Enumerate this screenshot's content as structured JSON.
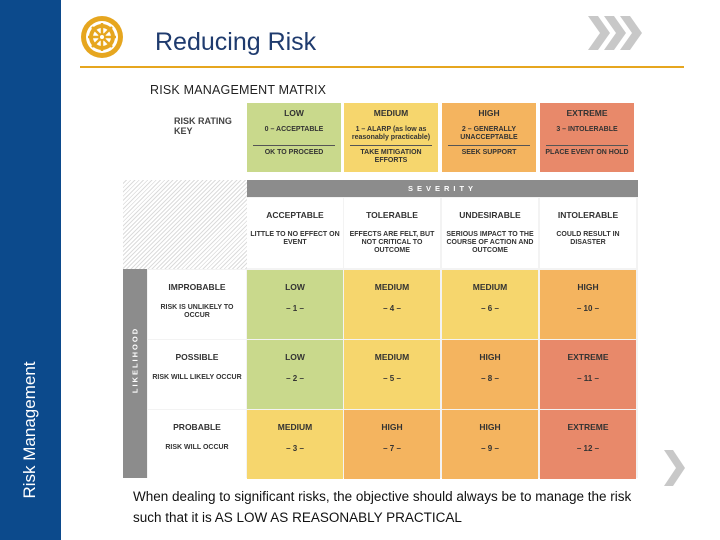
{
  "slide": {
    "title": "Reducing Risk",
    "sidebar_label": "Risk Management",
    "subtitle": "RISK MANAGEMENT MATRIX",
    "body_text": "When dealing to significant risks, the objective should always be to manage the risk such that it is  AS LOW AS REASONABLY PRACTICAL"
  },
  "colors": {
    "sidebar": "#0c4a8c",
    "accent": "#e6a61f",
    "title": "#1f3b6e",
    "low": "#c9d98c",
    "medium": "#f6d66d",
    "high": "#f4b45f",
    "extreme": "#e8896a"
  },
  "icons": {
    "logo": "rotary-wheel-icon",
    "header_arrow": "double-chevron-right-icon",
    "next": "chevron-right-icon"
  },
  "key": {
    "label": "RISK RATING KEY",
    "levels": [
      {
        "name": "LOW",
        "desc": "0 – ACCEPTABLE",
        "action": "OK TO PROCEED",
        "color": "low"
      },
      {
        "name": "MEDIUM",
        "desc": "1 – ALARP (as low as reasonably practicable)",
        "action": "TAKE MITIGATION EFFORTS",
        "color": "medium"
      },
      {
        "name": "HIGH",
        "desc": "2 – GENERALLY UNACCEPTABLE",
        "action": "SEEK SUPPORT",
        "color": "high"
      },
      {
        "name": "EXTREME",
        "desc": "3 – INTOLERABLE",
        "action": "PLACE EVENT ON HOLD",
        "color": "extreme"
      }
    ]
  },
  "matrix": {
    "severity_label": "SEVERITY",
    "likelihood_label": "LIKELIHOOD",
    "severity": [
      {
        "name": "ACCEPTABLE",
        "desc": "LITTLE TO NO EFFECT ON EVENT"
      },
      {
        "name": "TOLERABLE",
        "desc": "EFFECTS ARE FELT, BUT NOT CRITICAL TO OUTCOME"
      },
      {
        "name": "UNDESIRABLE",
        "desc": "SERIOUS IMPACT TO THE COURSE OF ACTION AND OUTCOME"
      },
      {
        "name": "INTOLERABLE",
        "desc": "COULD RESULT IN DISASTER"
      }
    ],
    "rows": [
      {
        "name": "IMPROBABLE",
        "desc": "RISK IS UNLIKELY TO OCCUR",
        "cells": [
          {
            "rating": "LOW",
            "num": "– 1 –",
            "color": "low"
          },
          {
            "rating": "MEDIUM",
            "num": "– 4 –",
            "color": "medium"
          },
          {
            "rating": "MEDIUM",
            "num": "– 6 –",
            "color": "medium"
          },
          {
            "rating": "HIGH",
            "num": "– 10 –",
            "color": "high"
          }
        ]
      },
      {
        "name": "POSSIBLE",
        "desc": "RISK WILL LIKELY OCCUR",
        "cells": [
          {
            "rating": "LOW",
            "num": "– 2 –",
            "color": "low"
          },
          {
            "rating": "MEDIUM",
            "num": "– 5 –",
            "color": "medium"
          },
          {
            "rating": "HIGH",
            "num": "– 8 –",
            "color": "high"
          },
          {
            "rating": "EXTREME",
            "num": "– 11 –",
            "color": "extreme"
          }
        ]
      },
      {
        "name": "PROBABLE",
        "desc": "RISK WILL OCCUR",
        "cells": [
          {
            "rating": "MEDIUM",
            "num": "– 3 –",
            "color": "medium"
          },
          {
            "rating": "HIGH",
            "num": "– 7 –",
            "color": "high"
          },
          {
            "rating": "HIGH",
            "num": "– 9 –",
            "color": "high"
          },
          {
            "rating": "EXTREME",
            "num": "– 12 –",
            "color": "extreme"
          }
        ]
      }
    ]
  }
}
